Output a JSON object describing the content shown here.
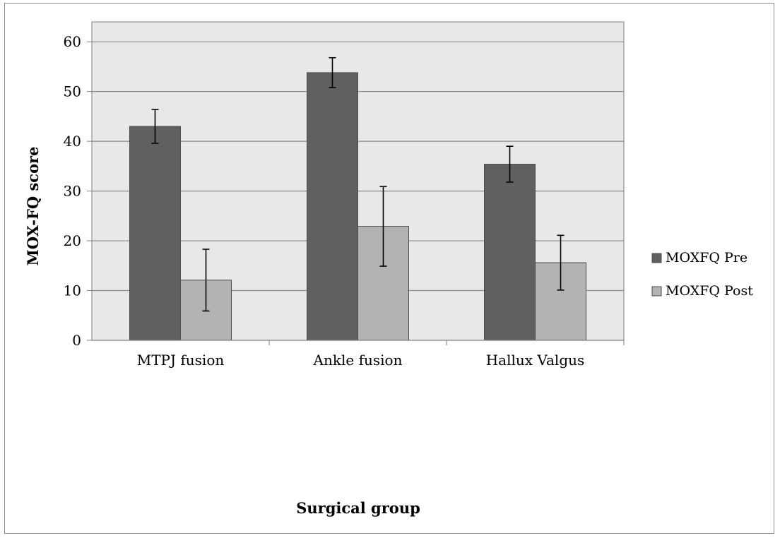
{
  "chart_data": {
    "type": "bar",
    "xlabel": "Surgical group",
    "ylabel": "MOX-FQ score",
    "ylim": [
      0,
      64
    ],
    "yticks": [
      0,
      10,
      20,
      30,
      40,
      50,
      60
    ],
    "grid": true,
    "legend_position": "right",
    "categories": [
      "MTPJ fusion",
      "Ankle fusion",
      "Hallux Valgus"
    ],
    "series": [
      {
        "name": "MOXFQ Pre",
        "color": "#606060",
        "values": [
          43.0,
          53.8,
          35.4
        ],
        "error_low": [
          39.6,
          50.8,
          31.8
        ],
        "error_high": [
          46.4,
          56.8,
          39.0
        ]
      },
      {
        "name": "MOXFQ Post",
        "color": "#b3b3b3",
        "values": [
          12.1,
          22.9,
          15.6
        ],
        "error_low": [
          5.9,
          14.9,
          10.1
        ],
        "error_high": [
          18.3,
          30.9,
          21.1
        ]
      }
    ],
    "colors": {
      "plot_background": "#e8e8e8",
      "gridline": "#8c8c8c",
      "axis": "#7f7f7f"
    }
  }
}
